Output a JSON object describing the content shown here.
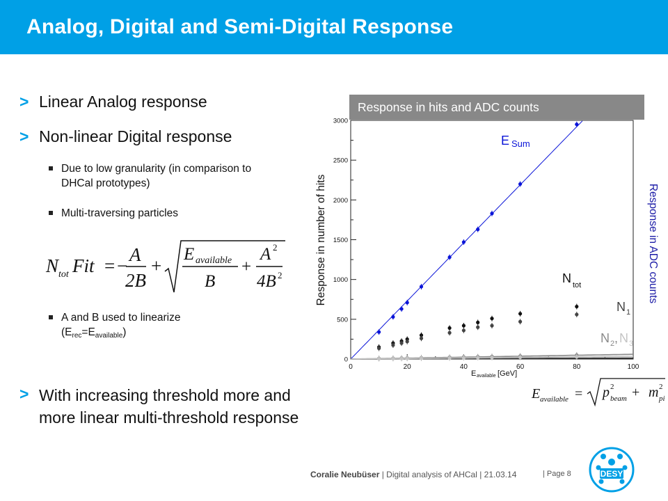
{
  "slide": {
    "title": "Analog, Digital and Semi-Digital Response",
    "bullets": [
      "Linear Analog response",
      "Non-linear Digital response",
      "With increasing threshold more and more linear multi-threshold response"
    ],
    "bullet_marker": ">",
    "sub_bullets": [
      "Due to low granularity (in comparison to DHCal prototypes)",
      "Multi-traversing particles"
    ],
    "sub_bullet_ab": {
      "text": "A and B used to linearize",
      "paren_open": "(E",
      "rec": "rec",
      "eq": "=E",
      "available": "available",
      "paren_close": ")"
    },
    "formula_lhs": "N",
    "formula_lhs_sub": "tot",
    "formula_lhs_rest": "Fit",
    "formula_eq": "=",
    "formula_minus": "−",
    "formula_plus1": "+",
    "formula_plus2": "+",
    "formula_A": "A",
    "formula_2B": "2B",
    "formula_E": "E",
    "formula_E_sub": "available",
    "formula_B": "B",
    "formula_A2": "A",
    "formula_A2_sup": "2",
    "formula_4B2": "4B",
    "formula_4B2_sup": "2",
    "formula2_lhs": "E",
    "formula2_lhs_sub": "available",
    "formula2_eq": "=",
    "formula2_p": "p",
    "formula2_p_sup": "2",
    "formula2_p_sub": "beam",
    "formula2_plus": "+",
    "formula2_m": "m",
    "formula2_m_sup": "2",
    "formula2_m_sub": "pi",
    "footer_author": "Coralie Neubüser",
    "footer_sep": " | Digital analysis of AHCal | 21.03.14",
    "footer_page": "|  Page 8",
    "logo_text": "DESY"
  },
  "chart_data": {
    "type": "scatter",
    "title": "Response in hits and ADC counts",
    "xlabel_main": "E",
    "xlabel_sub": "available",
    "xlabel_unit": " [GeV]",
    "ylabel": "Response in number of hits",
    "ylabel_right": "Response in ADC counts",
    "xlim": [
      0,
      100
    ],
    "ylim": [
      0,
      3000
    ],
    "x_ticks": [
      0,
      20,
      40,
      60,
      80,
      100
    ],
    "y_ticks": [
      0,
      500,
      1000,
      1500,
      2000,
      2500,
      3000
    ],
    "series": [
      {
        "name": "E",
        "name_sub": "Sum",
        "color": "#0a14d8",
        "fit": "linear",
        "fit_slope": 36.5,
        "x": [
          10,
          15,
          18,
          20,
          25,
          35,
          40,
          45,
          50,
          60,
          80
        ],
        "y": [
          340,
          530,
          630,
          710,
          910,
          1280,
          1470,
          1630,
          1830,
          2200,
          2950
        ]
      },
      {
        "name": "N",
        "name_sub": "tot",
        "color": "#111111",
        "fit": "ntot",
        "fit_A": 7.0,
        "fit_B": 0.16,
        "x": [
          10,
          15,
          18,
          20,
          25,
          35,
          40,
          45,
          50,
          60,
          80
        ],
        "y": [
          150,
          200,
          225,
          250,
          300,
          390,
          420,
          460,
          510,
          570,
          660
        ]
      },
      {
        "name": "N",
        "name_sub": "1",
        "color": "#444444",
        "fit": "ntot",
        "fit_A": 4.9,
        "fit_B": 0.2,
        "x": [
          10,
          15,
          18,
          20,
          25,
          35,
          40,
          45,
          50,
          60,
          80
        ],
        "y": [
          135,
          175,
          200,
          220,
          260,
          330,
          360,
          400,
          420,
          470,
          560
        ]
      },
      {
        "name": "N",
        "name_sub": "2",
        "color": "#8a8a8a",
        "fit": "linear",
        "fit_slope": 0.6,
        "x": [
          10,
          15,
          18,
          20,
          25,
          35,
          40,
          45,
          50,
          60,
          80
        ],
        "y": [
          8,
          10,
          12,
          13,
          16,
          22,
          26,
          29,
          32,
          38,
          50
        ]
      },
      {
        "name": "N",
        "name_sub": "3",
        "color": "#c4c4c4",
        "fit": "linear",
        "fit_slope": 0.35,
        "x": [
          10,
          15,
          18,
          20,
          25,
          35,
          40,
          45,
          50,
          60,
          80
        ],
        "y": [
          3,
          5,
          6,
          7,
          9,
          12,
          14,
          16,
          18,
          21,
          28
        ]
      }
    ],
    "label_comma": ",",
    "label_n2n3_sub2": "2",
    "label_n2n3_sub3": "3"
  }
}
